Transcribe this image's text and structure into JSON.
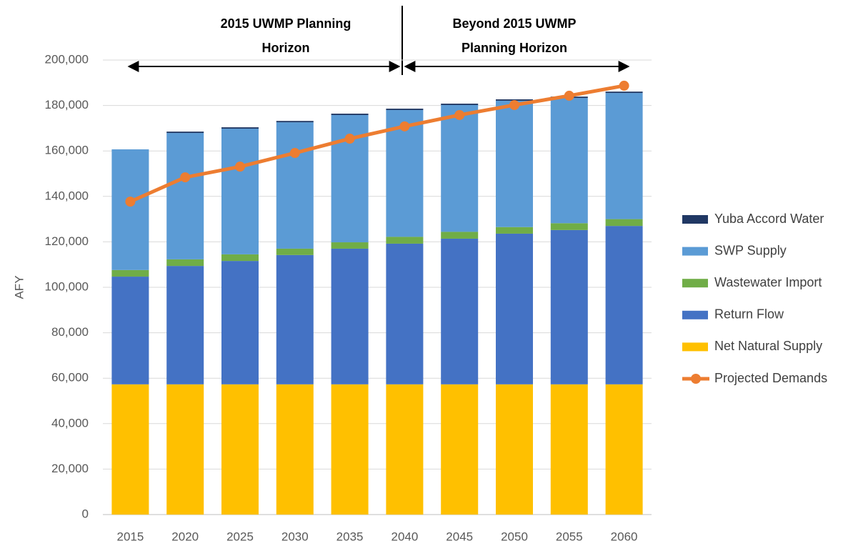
{
  "chart_data": {
    "type": "bar",
    "stacked": true,
    "y_label": "AFY",
    "categories": [
      "2015",
      "2020",
      "2025",
      "2030",
      "2035",
      "2040",
      "2045",
      "2050",
      "2055",
      "2060"
    ],
    "series": [
      {
        "name": "Net Natural Supply",
        "type": "bar",
        "color": "#ffc000",
        "values": [
          57300,
          57300,
          57300,
          57300,
          57300,
          57300,
          57300,
          57300,
          57300,
          57300
        ]
      },
      {
        "name": "Return Flow",
        "type": "bar",
        "color": "#4472c4",
        "values": [
          47400,
          52100,
          54300,
          56900,
          59700,
          61900,
          64100,
          66300,
          67900,
          69700
        ]
      },
      {
        "name": "Wastewater Import",
        "type": "bar",
        "color": "#70ad47",
        "values": [
          2900,
          2900,
          2900,
          2800,
          2800,
          3000,
          3000,
          2900,
          3000,
          3000
        ]
      },
      {
        "name": "SWP Supply",
        "type": "bar",
        "color": "#5b9bd5",
        "values": [
          53100,
          55600,
          55300,
          55600,
          56000,
          55800,
          55800,
          55600,
          55100,
          55500
        ]
      },
      {
        "name": "Yuba Accord Water",
        "type": "bar",
        "color": "#203864",
        "values": [
          0,
          600,
          600,
          600,
          600,
          600,
          600,
          600,
          600,
          600
        ]
      },
      {
        "name": "Projected Demands",
        "type": "line",
        "color": "#ed7d31",
        "values": [
          137700,
          148400,
          153100,
          159100,
          165400,
          170800,
          175800,
          180200,
          184300,
          188700
        ]
      }
    ],
    "ylim": [
      0,
      200000
    ],
    "yticks": [
      0,
      {
        "value": 20000,
        "label": "20,000"
      },
      {
        "value": 40000,
        "label": "40,000"
      },
      {
        "value": 60000,
        "label": "60,000"
      },
      {
        "value": 80000,
        "label": "80,000"
      },
      {
        "value": 100000,
        "label": "100,000"
      },
      {
        "value": 120000,
        "label": "120,000"
      },
      {
        "value": 140000,
        "label": "140,000"
      },
      {
        "value": 160000,
        "label": "160,000"
      },
      {
        "value": 180000,
        "label": "180,000"
      },
      {
        "value": 200000,
        "label": "200,000"
      }
    ],
    "grid": true,
    "legend": "right",
    "annotations": [
      {
        "lines": [
          "2015 UWMP Planning",
          "Horizon"
        ]
      },
      {
        "lines": [
          "Beyond 2015 UWMP",
          "Planning Horizon"
        ]
      }
    ]
  }
}
